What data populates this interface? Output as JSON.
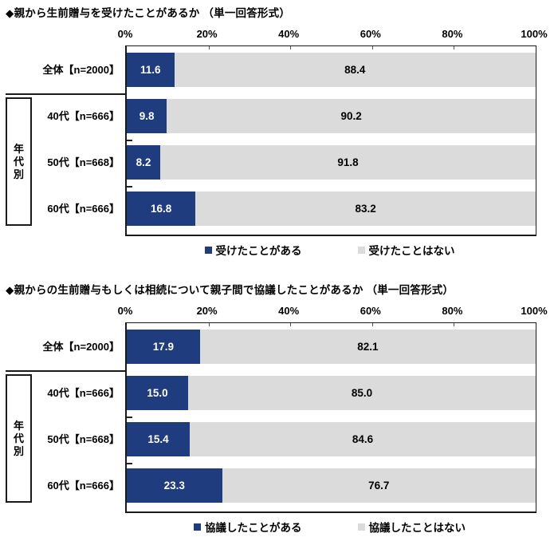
{
  "colors": {
    "bar_primary": "#1F3C7E",
    "bar_secondary": "#DBDBDB",
    "label_on_primary": "#FFFFFF",
    "label_on_secondary": "#000000",
    "axis_line": "#1A1A1A"
  },
  "chart_data": [
    {
      "type": "bar",
      "orientation": "horizontal",
      "stacked": true,
      "title": "◆親から生前贈与を受けたことがあるか （単一回答形式）",
      "categories": [
        "全体【n=2000】",
        "40代【n=666】",
        "50代【n=668】",
        "60代【n=666】"
      ],
      "series": [
        {
          "name": "受けたことがある",
          "color": "#1F3C7E",
          "values": [
            11.6,
            9.8,
            8.2,
            16.8
          ]
        },
        {
          "name": "受けたことはない",
          "color": "#DBDBDB",
          "values": [
            88.4,
            90.2,
            91.8,
            83.2
          ]
        }
      ],
      "group_label": "年代別",
      "group_rows": [
        1,
        2,
        3
      ],
      "xlim": [
        0,
        100
      ],
      "x_ticks": [
        "0%",
        "20%",
        "40%",
        "60%",
        "80%",
        "100%"
      ],
      "grid": false,
      "legend_position": "bottom"
    },
    {
      "type": "bar",
      "orientation": "horizontal",
      "stacked": true,
      "title": "◆親からの生前贈与もしくは相続について親子間で協議したことがあるか （単一回答形式）",
      "categories": [
        "全体【n=2000】",
        "40代【n=666】",
        "50代【n=668】",
        "60代【n=666】"
      ],
      "series": [
        {
          "name": "協議したことがある",
          "color": "#1F3C7E",
          "values": [
            17.9,
            15.0,
            15.4,
            23.3
          ]
        },
        {
          "name": "協議したことはない",
          "color": "#DBDBDB",
          "values": [
            82.1,
            85.0,
            84.6,
            76.7
          ]
        }
      ],
      "group_label": "年代別",
      "group_rows": [
        1,
        2,
        3
      ],
      "xlim": [
        0,
        100
      ],
      "x_ticks": [
        "0%",
        "20%",
        "40%",
        "60%",
        "80%",
        "100%"
      ],
      "grid": false,
      "legend_position": "bottom"
    }
  ]
}
